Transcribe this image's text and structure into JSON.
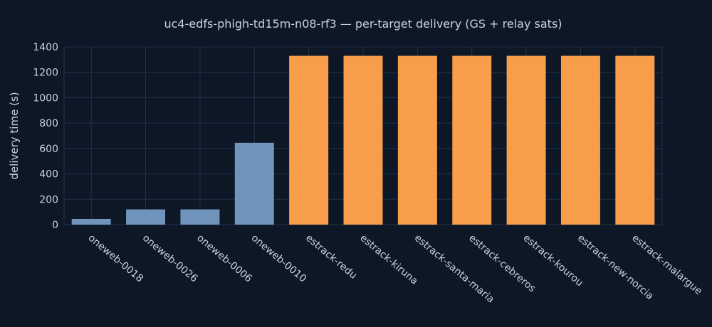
{
  "chart_data": {
    "type": "bar",
    "title": "uc4-edfs-phigh-td15m-n08-rf3 — per-target delivery (GS + relay sats)",
    "xlabel": "",
    "ylabel": "delivery time (s)",
    "ylim": [
      0,
      1400
    ],
    "yticks": [
      0,
      200,
      400,
      600,
      800,
      1000,
      1200,
      1400
    ],
    "grid": true,
    "categories": [
      "oneweb-0018",
      "oneweb-0026",
      "oneweb-0006",
      "oneweb-0010",
      "estrack-redu",
      "estrack-kiruna",
      "estrack-santa-maria",
      "estrack-cebreros",
      "estrack-kourou",
      "estrack-new-norcia",
      "estrack-malargue"
    ],
    "values": [
      45,
      120,
      120,
      645,
      1330,
      1330,
      1330,
      1330,
      1330,
      1330,
      1330
    ],
    "bar_colors": [
      "#7094bc",
      "#7094bc",
      "#7094bc",
      "#7094bc",
      "#f89e4a",
      "#f89e4a",
      "#f89e4a",
      "#f89e4a",
      "#f89e4a",
      "#f89e4a",
      "#f89e4a"
    ]
  }
}
